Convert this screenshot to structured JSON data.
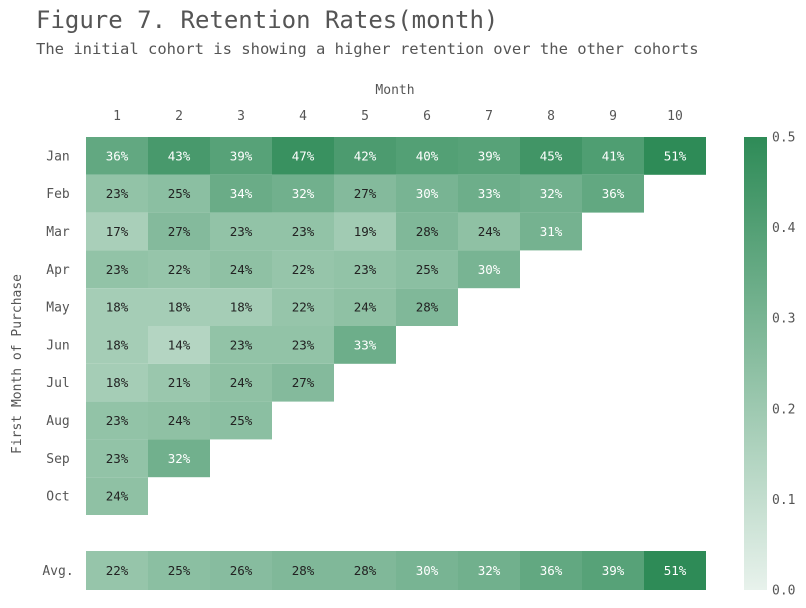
{
  "chart_data": {
    "type": "heatmap",
    "title": "Figure 7. Retention Rates(month)",
    "subtitle": "The initial cohort is showing a higher retention over the other cohorts",
    "xlabel": "Month",
    "ylabel": "First Month of Purchase",
    "columns": [
      "1",
      "2",
      "3",
      "4",
      "5",
      "6",
      "7",
      "8",
      "9",
      "10"
    ],
    "rows": [
      {
        "label": "Jan",
        "values": [
          0.36,
          0.43,
          0.39,
          0.47,
          0.42,
          0.4,
          0.39,
          0.45,
          0.41,
          0.51
        ]
      },
      {
        "label": "Feb",
        "values": [
          0.23,
          0.25,
          0.34,
          0.32,
          0.27,
          0.3,
          0.33,
          0.32,
          0.36
        ]
      },
      {
        "label": "Mar",
        "values": [
          0.17,
          0.27,
          0.23,
          0.23,
          0.19,
          0.28,
          0.24,
          0.31
        ]
      },
      {
        "label": "Apr",
        "values": [
          0.23,
          0.22,
          0.24,
          0.22,
          0.23,
          0.25,
          0.3
        ]
      },
      {
        "label": "May",
        "values": [
          0.18,
          0.18,
          0.18,
          0.22,
          0.24,
          0.28
        ]
      },
      {
        "label": "Jun",
        "values": [
          0.18,
          0.14,
          0.23,
          0.23,
          0.33
        ]
      },
      {
        "label": "Jul",
        "values": [
          0.18,
          0.21,
          0.24,
          0.27
        ]
      },
      {
        "label": "Aug",
        "values": [
          0.23,
          0.24,
          0.25
        ]
      },
      {
        "label": "Sep",
        "values": [
          0.23,
          0.32
        ]
      },
      {
        "label": "Oct",
        "values": [
          0.24
        ]
      }
    ],
    "average": {
      "label": "Avg.",
      "values": [
        0.22,
        0.25,
        0.26,
        0.28,
        0.28,
        0.3,
        0.32,
        0.36,
        0.39,
        0.51
      ]
    },
    "value_format": "percent",
    "colorbar": {
      "range": [
        0.0,
        0.5
      ],
      "ticks": [
        "0.0",
        "0.1",
        "0.2",
        "0.3",
        "0.4",
        "0.5"
      ]
    },
    "colors": {
      "low": "#e8f2ec",
      "high": "#2e8b57",
      "text_dark": "#222222",
      "text_light": "#ffffff"
    },
    "grid": false
  }
}
